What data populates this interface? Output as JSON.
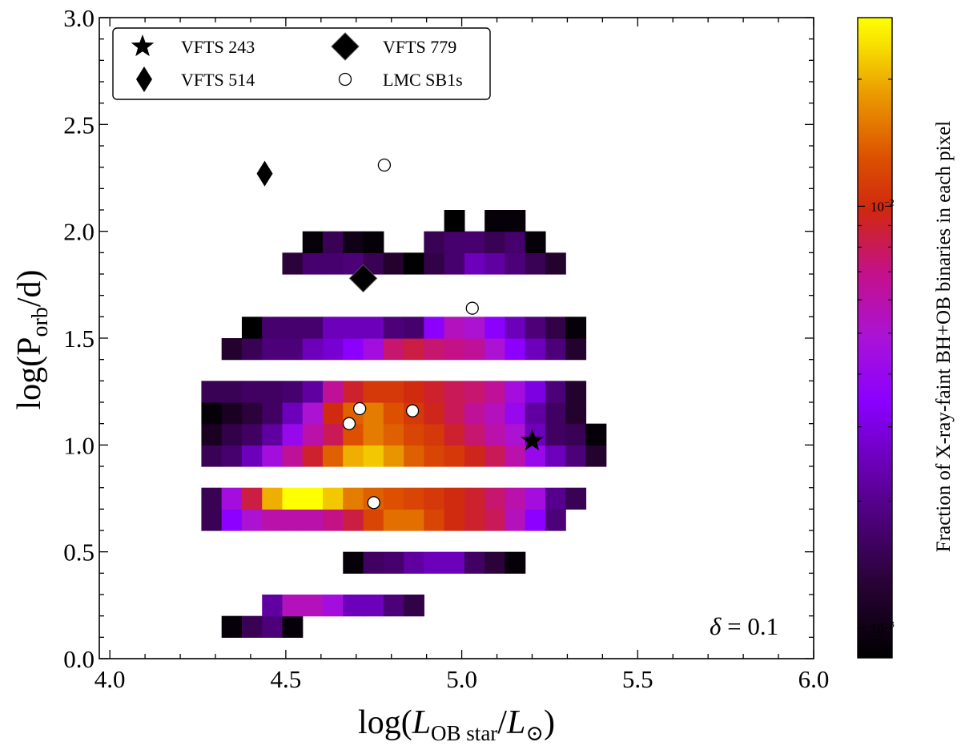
{
  "chart_data": {
    "type": "heatmap",
    "xlabel": "log(L_OB star / L_⊙)",
    "xlabel_main": "log(",
    "xlabel_var": "L",
    "xlabel_sub": "OB star",
    "xlabel_div": "/",
    "xlabel_var2": "L",
    "xlabel_sun": "⊙",
    "xlabel_close": ")",
    "ylabel": "log(P_orb/d)",
    "ylabel_main": "log(P",
    "ylabel_sub": "orb",
    "ylabel_end": "/d)",
    "xlim": [
      3.97,
      6.0
    ],
    "ylim": [
      0.0,
      3.0
    ],
    "xticks": [
      "4.0",
      "4.5",
      "5.0",
      "5.5",
      "6.0"
    ],
    "yticks": [
      "0.0",
      "0.5",
      "1.0",
      "1.5",
      "2.0",
      "2.5",
      "3.0"
    ],
    "grid": false,
    "annotation": "δ = 0.1",
    "annotation_symbol": "δ",
    "annotation_value": " = 0.1",
    "colorbar": {
      "label": "Fraction of X-ray-faint BH+OB binaries in each pixel",
      "scale": "log",
      "min": 0.00085,
      "max": 0.028,
      "ticks": [
        {
          "value": 0.01,
          "base": "10",
          "exp": "−2"
        },
        {
          "value": 0.001,
          "base": "10",
          "exp": "−3"
        }
      ],
      "colormap": "gnuplot",
      "stops": [
        {
          "t": 0.0,
          "color": "#000000"
        },
        {
          "t": 0.12,
          "color": "#2a0238"
        },
        {
          "t": 0.3,
          "color": "#6a00b4"
        },
        {
          "t": 0.4,
          "color": "#8a00ff"
        },
        {
          "t": 0.5,
          "color": "#aa12d6"
        },
        {
          "t": 0.6,
          "color": "#c4108a"
        },
        {
          "t": 0.7,
          "color": "#d02810"
        },
        {
          "t": 0.78,
          "color": "#dc5000"
        },
        {
          "t": 0.88,
          "color": "#ea9a00"
        },
        {
          "t": 0.96,
          "color": "#f8e200"
        },
        {
          "t": 1.0,
          "color": "#ffff00"
        }
      ]
    },
    "heatmap": {
      "x_start": 4.26,
      "x_step": 0.0575,
      "y_start": 0.15,
      "y_step": 0.1,
      "rows": [
        {
          "y": 0.15,
          "cells": [
            null,
            0.0009,
            0.0015,
            0.0018,
            0.0009
          ]
        },
        {
          "y": 0.25,
          "cells": [
            null,
            null,
            null,
            0.0022,
            0.0055,
            0.0055,
            0.0045,
            0.0025,
            0.0025,
            0.0018,
            0.0014
          ]
        },
        {
          "y": 0.45,
          "cells": [
            null,
            null,
            null,
            null,
            null,
            null,
            null,
            0.0009,
            0.0016,
            0.0017,
            0.0022,
            0.0025,
            0.0025,
            0.0016,
            0.0013,
            0.0009
          ]
        },
        {
          "y": 0.65,
          "cells": [
            0.0015,
            0.0035,
            0.005,
            0.006,
            0.006,
            0.006,
            0.007,
            0.0085,
            0.012,
            0.015,
            0.015,
            0.012,
            0.01,
            0.009,
            0.008,
            0.0055,
            0.0035,
            0.0018
          ]
        },
        {
          "y": 0.75,
          "cells": [
            0.0015,
            0.0045,
            0.0085,
            0.02,
            0.028,
            0.028,
            0.022,
            0.016,
            0.014,
            0.013,
            0.012,
            0.011,
            0.01,
            0.009,
            0.0075,
            0.006,
            0.0045,
            0.002,
            0.0015
          ]
        },
        {
          "y": 0.95,
          "cells": [
            0.0015,
            0.0017,
            0.0025,
            0.0045,
            0.0065,
            0.009,
            0.014,
            0.02,
            0.022,
            0.018,
            0.014,
            0.012,
            0.011,
            0.0095,
            0.008,
            0.006,
            0.004,
            0.0025,
            0.0018,
            0.0012
          ]
        },
        {
          "y": 1.05,
          "cells": [
            0.0011,
            0.0014,
            0.0016,
            0.0022,
            0.004,
            0.006,
            0.008,
            0.013,
            0.016,
            0.014,
            0.012,
            0.011,
            0.009,
            0.0075,
            0.006,
            0.005,
            0.0025,
            0.0016,
            0.0015,
            0.0009
          ]
        },
        {
          "y": 1.15,
          "cells": [
            0.0009,
            0.0011,
            0.0013,
            0.0016,
            0.0025,
            0.005,
            0.01,
            0.014,
            0.016,
            0.013,
            0.011,
            0.0095,
            0.008,
            0.0065,
            0.0055,
            0.004,
            0.0022,
            0.0016,
            0.0012
          ]
        },
        {
          "y": 1.25,
          "cells": [
            0.0015,
            0.0015,
            0.0016,
            0.0016,
            0.0017,
            0.0022,
            0.0065,
            0.009,
            0.011,
            0.011,
            0.01,
            0.009,
            0.008,
            0.0075,
            0.0065,
            0.0045,
            0.003,
            0.0018,
            0.0012
          ]
        },
        {
          "y": 1.45,
          "cells": [
            null,
            0.0012,
            0.0015,
            0.0018,
            0.0018,
            0.0025,
            0.0028,
            0.0035,
            0.0045,
            0.0075,
            0.0085,
            0.0075,
            0.007,
            0.0065,
            0.005,
            0.0035,
            0.0025,
            0.0018,
            0.0012
          ]
        },
        {
          "y": 1.55,
          "cells": [
            null,
            null,
            0.0008,
            0.0017,
            0.0017,
            0.0017,
            0.0025,
            0.0025,
            0.0025,
            0.0018,
            0.0017,
            0.0035,
            0.0055,
            0.005,
            0.0035,
            0.0025,
            0.0018,
            0.0014,
            0.0009
          ]
        },
        {
          "y": 1.85,
          "cells": [
            null,
            null,
            null,
            null,
            0.0013,
            0.0017,
            0.0017,
            0.0018,
            0.0015,
            0.0012,
            0.00085,
            0.0014,
            0.0017,
            0.0025,
            0.0022,
            0.0018,
            0.0015,
            0.0012
          ]
        },
        {
          "y": 1.95,
          "cells": [
            null,
            null,
            null,
            null,
            null,
            0.0009,
            0.0015,
            0.001,
            0.0009,
            null,
            null,
            0.0015,
            0.0017,
            0.0017,
            0.0015,
            0.0017,
            0.0009
          ]
        },
        {
          "y": 2.05,
          "cells": [
            null,
            null,
            null,
            null,
            null,
            null,
            null,
            null,
            null,
            null,
            null,
            null,
            0.00085,
            null,
            0.0009,
            0.0009
          ]
        }
      ]
    },
    "legend": [
      {
        "label": "VFTS 243",
        "marker": "star"
      },
      {
        "label": "VFTS 779",
        "marker": "diamond"
      },
      {
        "label": "VFTS 514",
        "marker": "thin-diamond"
      },
      {
        "label": "LMC SB1s",
        "marker": "open-circle"
      }
    ],
    "points": [
      {
        "name": "VFTS 243",
        "marker": "star",
        "x": 5.2,
        "y": 1.02
      },
      {
        "name": "VFTS 779",
        "marker": "diamond",
        "x": 4.72,
        "y": 1.78
      },
      {
        "name": "VFTS 514",
        "marker": "thin-diamond",
        "x": 4.44,
        "y": 2.27
      },
      {
        "name": "LMC SB1s",
        "marker": "open-circle",
        "x": 4.78,
        "y": 2.31
      },
      {
        "name": "LMC SB1s",
        "marker": "open-circle",
        "x": 5.03,
        "y": 1.64
      },
      {
        "name": "LMC SB1s",
        "marker": "open-circle",
        "x": 4.71,
        "y": 1.17
      },
      {
        "name": "LMC SB1s",
        "marker": "open-circle",
        "x": 4.86,
        "y": 1.16
      },
      {
        "name": "LMC SB1s",
        "marker": "open-circle",
        "x": 4.68,
        "y": 1.1
      },
      {
        "name": "LMC SB1s",
        "marker": "open-circle",
        "x": 4.75,
        "y": 0.73
      }
    ]
  }
}
